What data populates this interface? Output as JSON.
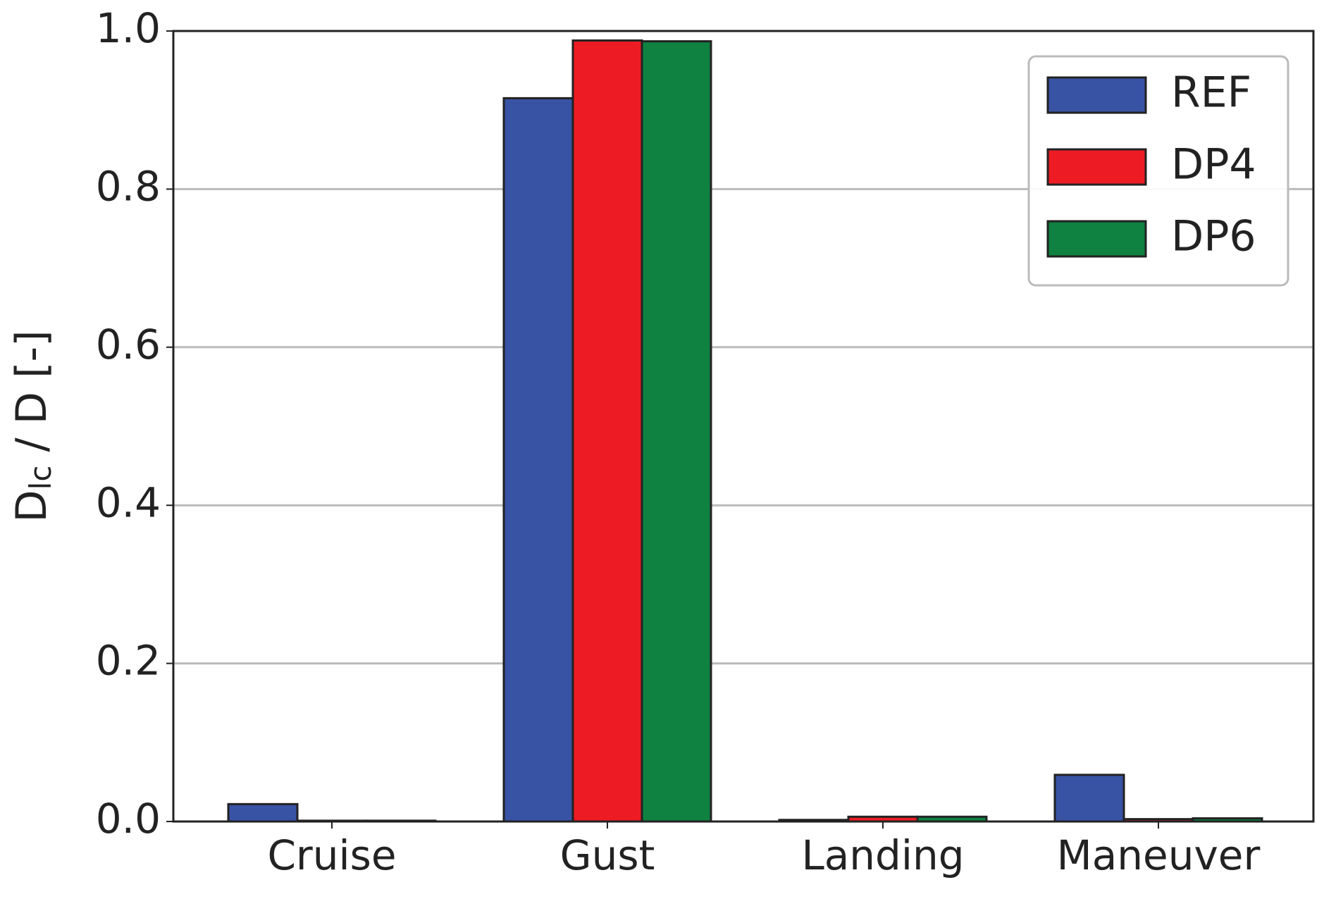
{
  "chart_data": {
    "type": "bar",
    "ylabel": {
      "main": "D",
      "sub": "lc",
      "rest": " / D [-]"
    },
    "categories": [
      "Cruise",
      "Gust",
      "Landing",
      "Maneuver"
    ],
    "series": [
      {
        "name": "REF",
        "color": "#3953a4",
        "values": [
          0.022,
          0.915,
          0.002,
          0.059
        ]
      },
      {
        "name": "DP4",
        "color": "#ed1c24",
        "values": [
          0.001,
          0.988,
          0.006,
          0.003
        ]
      },
      {
        "name": "DP6",
        "color": "#0f8140",
        "values": [
          0.001,
          0.987,
          0.006,
          0.004
        ]
      }
    ],
    "ylim": [
      0,
      1
    ],
    "yticks": [
      {
        "value": 0,
        "label": "0.0"
      },
      0.2,
      0.4,
      0.6,
      0.8,
      {
        "value": 1,
        "label": "1.0"
      }
    ],
    "grid": true,
    "legend": "upper right"
  }
}
